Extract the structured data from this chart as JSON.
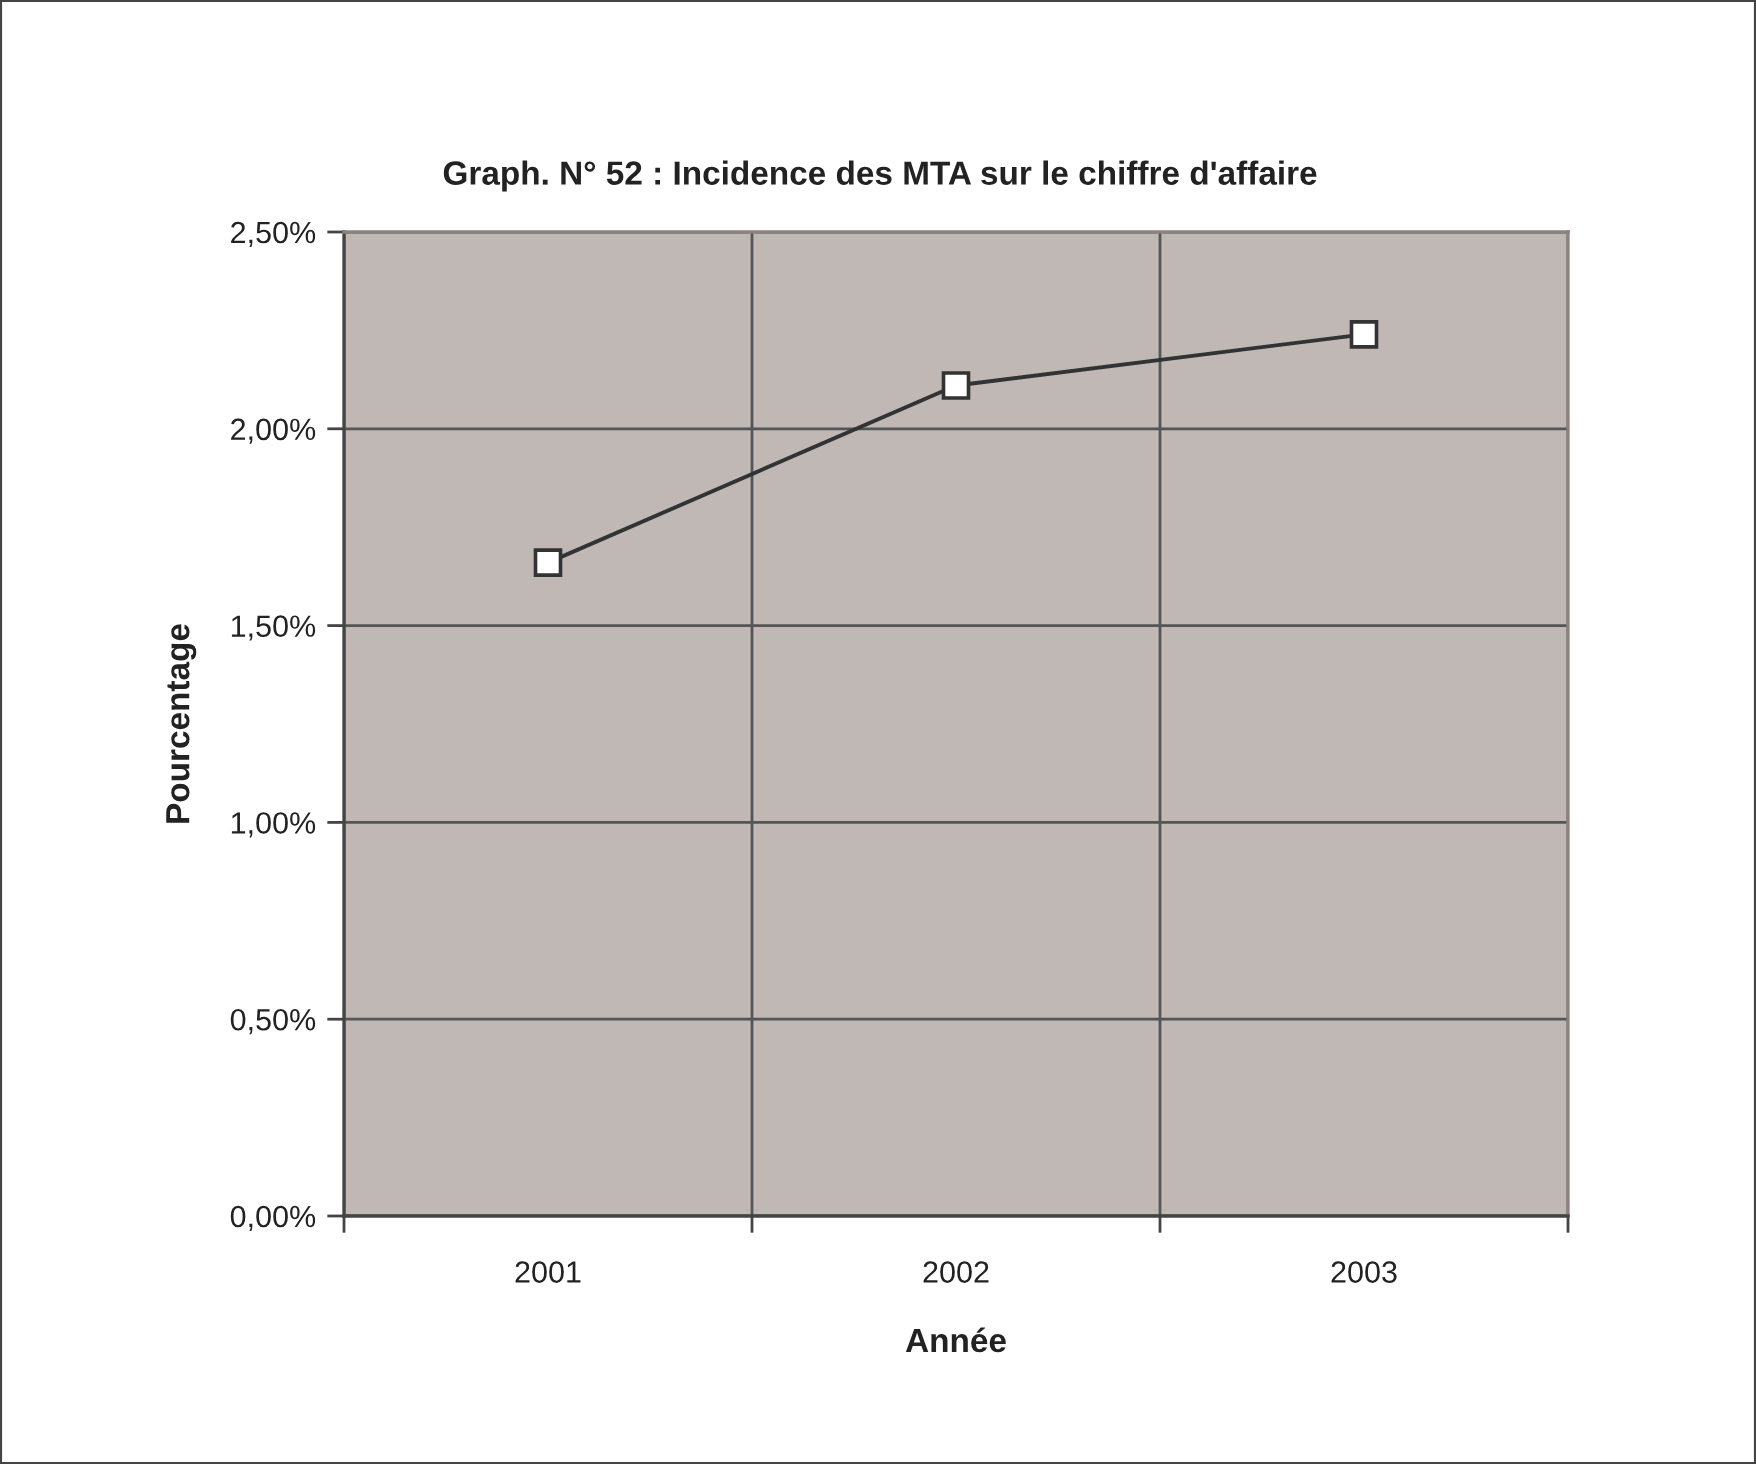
{
  "chart_data": {
    "type": "line",
    "title": "Graph. N° 52 : Incidence des MTA sur le chiffre d'affaire",
    "xlabel": "Année",
    "ylabel": "Pourcentage",
    "categories": [
      "2001",
      "2002",
      "2003"
    ],
    "series": [
      {
        "color": "#333333",
        "values": [
          1.66,
          2.11,
          2.24
        ]
      }
    ],
    "ylim": [
      0,
      2.5
    ],
    "yticks": [
      {
        "value": 0,
        "label": "0,00%"
      },
      {
        "value": 0.5,
        "label": "0,50%"
      },
      {
        "value": 1,
        "label": "1,00%"
      },
      {
        "value": 1.5,
        "label": "1,50%"
      },
      {
        "value": 2,
        "label": "2,00%"
      },
      {
        "value": 2.5,
        "label": "2,50%"
      }
    ],
    "grid": true,
    "marker": "square",
    "line_style": "solid"
  }
}
